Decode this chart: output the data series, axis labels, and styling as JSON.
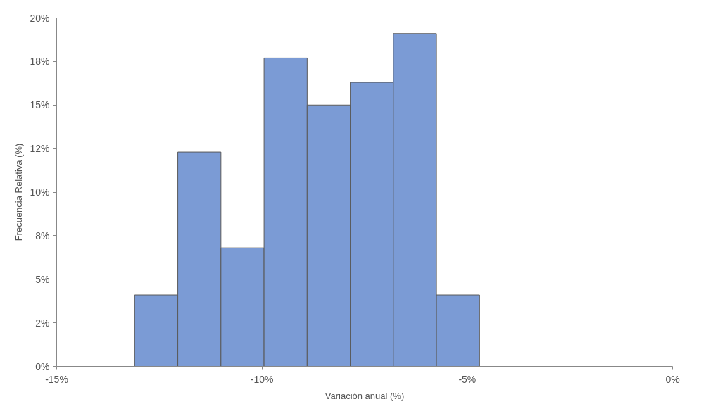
{
  "chart_data": {
    "type": "histogram",
    "xlabel": "Variación anual (%)",
    "ylabel": "Frecuencia Relativa (%)",
    "bins": [
      -13.1,
      -12.05,
      -11.0,
      -9.95,
      -8.9,
      -7.85,
      -6.8,
      -5.75,
      -4.7
    ],
    "values": [
      4.1,
      12.3,
      6.8,
      17.7,
      15.0,
      16.3,
      19.1,
      4.1
    ],
    "color": "#7b9bd5",
    "xlim": [
      -15,
      0
    ],
    "xticks": [
      {
        "value": -15,
        "label": "-15%"
      },
      {
        "value": -10,
        "label": "-10%"
      },
      {
        "value": -5,
        "label": "-5%"
      },
      {
        "value": 0,
        "label": "0%"
      }
    ],
    "ylim": [
      0,
      20
    ],
    "yticks": [
      {
        "value": 0,
        "label": "0%"
      },
      {
        "value": 2.5,
        "label": "2%"
      },
      {
        "value": 5,
        "label": "5%"
      },
      {
        "value": 7.5,
        "label": "8%"
      },
      {
        "value": 10,
        "label": "10%"
      },
      {
        "value": 12.5,
        "label": "12%"
      },
      {
        "value": 15,
        "label": "15%"
      },
      {
        "value": 17.5,
        "label": "18%"
      },
      {
        "value": 20,
        "label": "20%"
      }
    ],
    "grid": false
  }
}
